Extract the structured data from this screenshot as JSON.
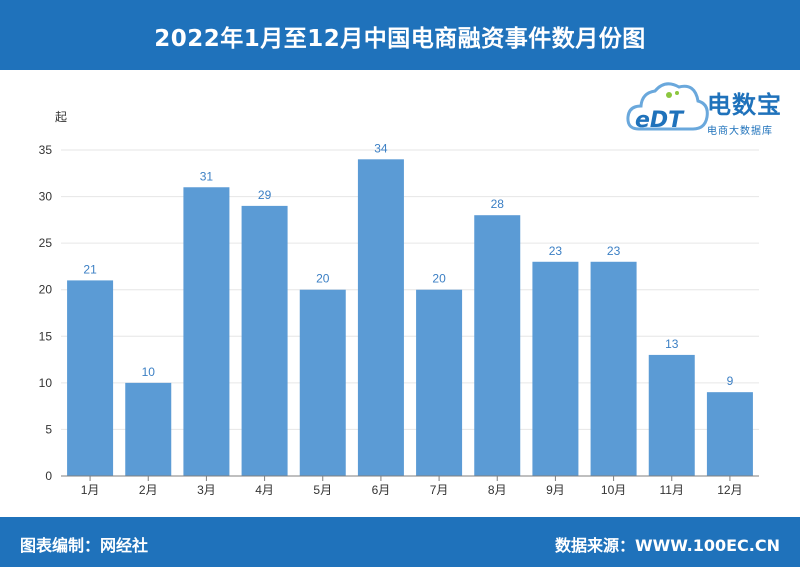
{
  "header": {
    "title": "2022年1月至12月中国电商融资事件数月份图"
  },
  "logo": {
    "brand": "电数宝",
    "sub": "电商大数据库",
    "badge": "eDT"
  },
  "footer": {
    "left": "图表编制：网经社",
    "right": "数据来源：WWW.100EC.CN"
  },
  "colors": {
    "header": "#1f72bb",
    "bar": "#5b9bd5",
    "label": "#3b7fc4",
    "axis": "#7f7f7f"
  },
  "chart_data": {
    "type": "bar",
    "title": "2022年1月至12月中国电商融资事件数月份图",
    "ylabel": "起",
    "xlabel": "",
    "categories": [
      "1月",
      "2月",
      "3月",
      "4月",
      "5月",
      "6月",
      "7月",
      "8月",
      "9月",
      "10月",
      "11月",
      "12月"
    ],
    "values": [
      21,
      10,
      31,
      29,
      20,
      34,
      20,
      28,
      23,
      23,
      13,
      9
    ],
    "ylim": [
      0,
      35
    ],
    "yticks": [
      0,
      5,
      10,
      15,
      20,
      25,
      30,
      35
    ],
    "grid": true,
    "legend": "none"
  }
}
